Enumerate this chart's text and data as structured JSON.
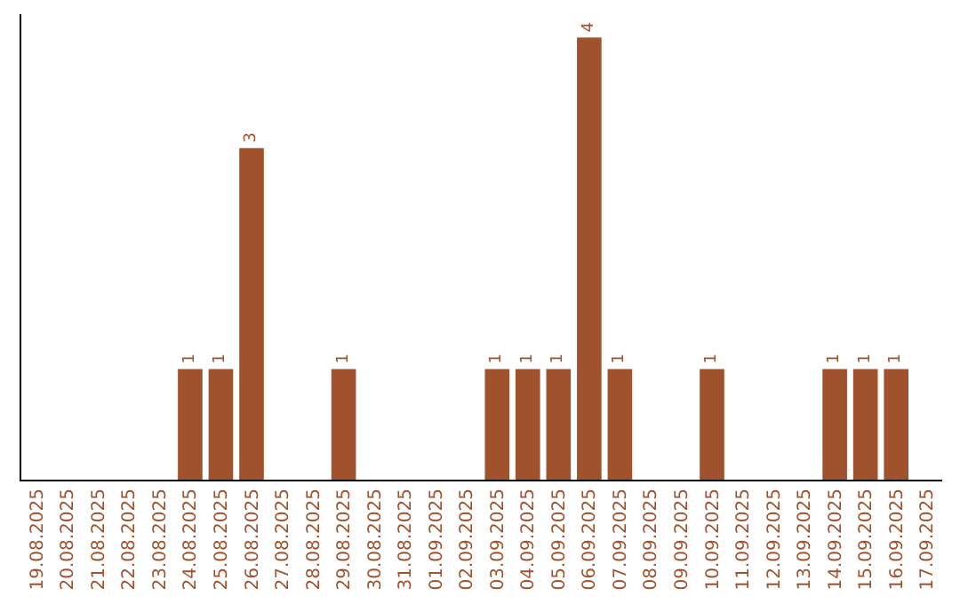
{
  "chart_data": {
    "type": "bar",
    "categories": [
      "19.08.2025",
      "20.08.2025",
      "21.08.2025",
      "22.08.2025",
      "23.08.2025",
      "24.08.2025",
      "25.08.2025",
      "26.08.2025",
      "27.08.2025",
      "28.08.2025",
      "29.08.2025",
      "30.08.2025",
      "31.08.2025",
      "01.09.2025",
      "02.09.2025",
      "03.09.2025",
      "04.09.2025",
      "05.09.2025",
      "06.09.2025",
      "07.09.2025",
      "08.09.2025",
      "09.09.2025",
      "10.09.2025",
      "11.09.2025",
      "12.09.2025",
      "13.09.2025",
      "14.09.2025",
      "15.09.2025",
      "16.09.2025",
      "17.09.2025"
    ],
    "values": [
      0,
      0,
      0,
      0,
      0,
      1,
      1,
      3,
      0,
      0,
      1,
      0,
      0,
      0,
      0,
      1,
      1,
      1,
      4,
      1,
      0,
      0,
      1,
      0,
      0,
      0,
      1,
      1,
      1,
      0
    ],
    "value_labels": [
      null,
      null,
      null,
      null,
      null,
      "1",
      "1",
      "3",
      null,
      null,
      "1",
      null,
      null,
      null,
      null,
      "1",
      "1",
      "1",
      "4",
      "1",
      null,
      null,
      "1",
      null,
      null,
      null,
      "1",
      "1",
      "1",
      null
    ],
    "color": "#a0522d",
    "grid": false,
    "legend": false,
    "tick_labels": "x"
  }
}
